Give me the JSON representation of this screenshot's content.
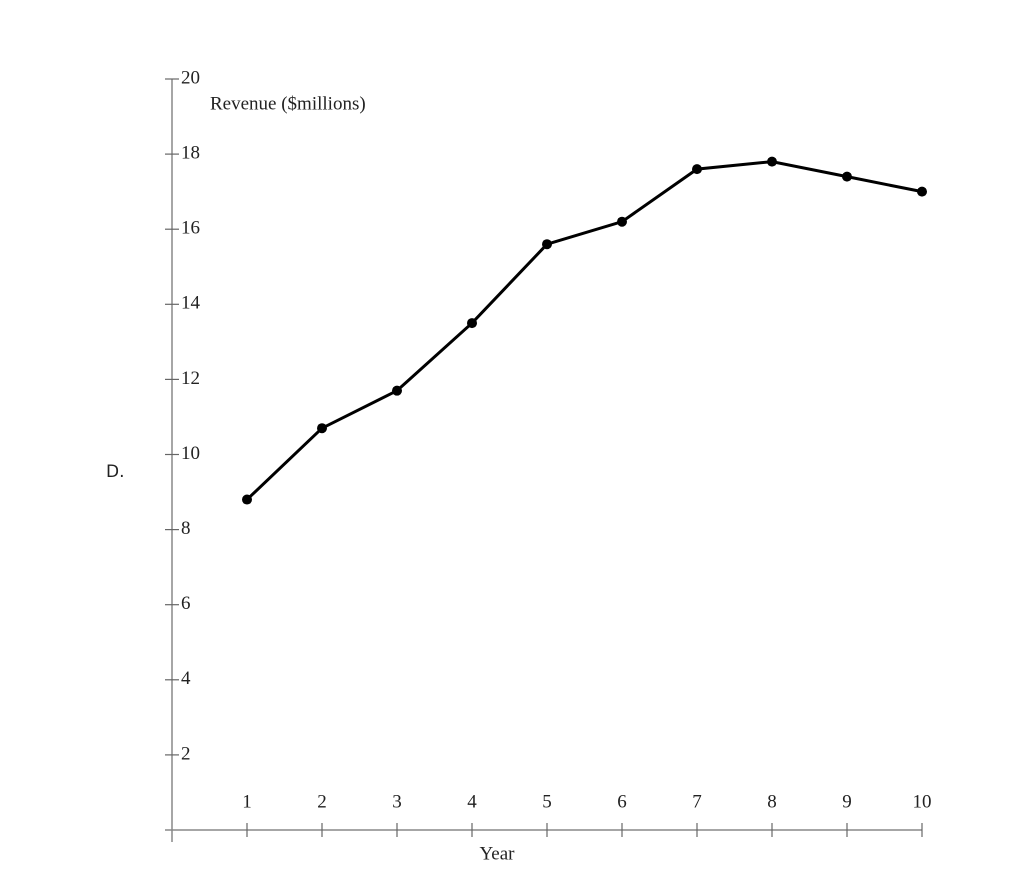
{
  "option_label": "D.",
  "chart_data": {
    "type": "line",
    "x_label": "Year",
    "y_label": "Revenue ($millions)",
    "x": [
      1,
      2,
      3,
      4,
      5,
      6,
      7,
      8,
      9,
      10
    ],
    "series": [
      {
        "color": "#000000",
        "values": [
          8.8,
          10.7,
          11.7,
          13.5,
          15.6,
          16.2,
          17.6,
          17.8,
          17.4,
          17.0
        ]
      }
    ],
    "xlim": [
      0,
      10
    ],
    "xticks": [
      1,
      2,
      3,
      4,
      5,
      6,
      7,
      8,
      9,
      10
    ],
    "ylim": [
      0,
      20
    ],
    "yticks": [
      2,
      4,
      6,
      8,
      10,
      12,
      14,
      16,
      18,
      20
    ]
  }
}
